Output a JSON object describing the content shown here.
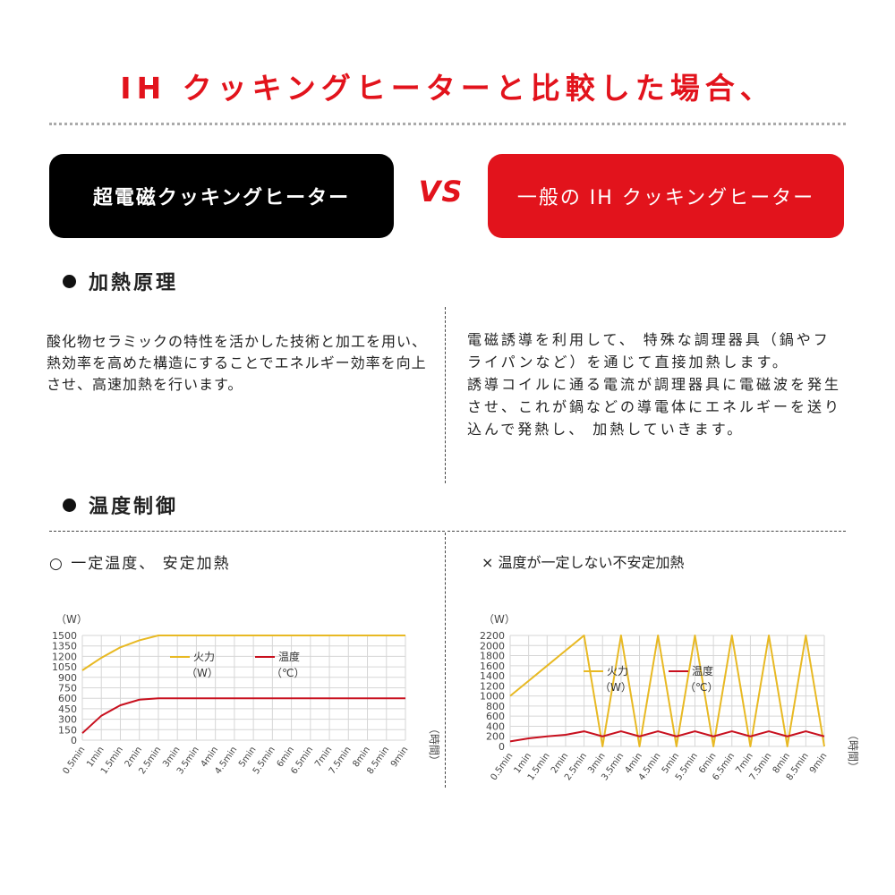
{
  "title": "IH クッキングヒーターと比較した場合、",
  "compare": {
    "left_label": "超電磁クッキングヒーター",
    "vs": "VS",
    "right_label": "一般の IH クッキングヒーター"
  },
  "sections": {
    "heating": {
      "heading": "加熱原理",
      "left_text": "酸化物セラミックの特性を活かした技術と加工を用い、熱効率を高めた構造にすることでエネルギー効率を向上させ、高速加熱を行います。",
      "right_text_1": "電磁誘導を利用して、 特殊な調理器具（鍋やフライパンなど）を通じて直接加熱します。",
      "right_text_2": "誘導コイルに通る電流が調理器具に電磁波を発生させ、これが鍋などの導電体にエネルギーを送り込んで発熱し、 加熱していきます。"
    },
    "temperature": {
      "heading": "温度制御",
      "left_sub": "○ 一定温度、 安定加熱",
      "right_sub": "× 温度が一定しない不安定加熱"
    }
  },
  "colors": {
    "accent_red": "#e2131c",
    "power_line": "#e8b923",
    "temp_line": "#c8101e",
    "grid": "#d6d6d6"
  },
  "chart_data": [
    {
      "type": "line",
      "ylabel": "（W）",
      "xlabel": "（時間）",
      "x": [
        "0.5min",
        "1min",
        "1.5min",
        "2min",
        "2.5min",
        "3min",
        "3.5min",
        "4min",
        "4.5min",
        "5min",
        "5.5min",
        "6min",
        "6.5min",
        "7min",
        "7.5min",
        "8min",
        "8.5min",
        "9min"
      ],
      "yticks": [
        0,
        150,
        300,
        450,
        600,
        750,
        900,
        1050,
        1200,
        1350,
        1500
      ],
      "ylim": [
        0,
        1500
      ],
      "series": [
        {
          "name": "火力（W）",
          "color": "#e8b923",
          "values": [
            1000,
            1180,
            1330,
            1430,
            1500,
            1500,
            1500,
            1500,
            1500,
            1500,
            1500,
            1500,
            1500,
            1500,
            1500,
            1500,
            1500,
            1500
          ]
        },
        {
          "name": "温度（℃）",
          "color": "#c8101e",
          "values": [
            100,
            350,
            500,
            580,
            600,
            600,
            600,
            600,
            600,
            600,
            600,
            600,
            600,
            600,
            600,
            600,
            600,
            600
          ]
        }
      ],
      "legend_position": "top-center"
    },
    {
      "type": "line",
      "ylabel": "（W）",
      "xlabel": "（時間）",
      "x": [
        "0.5min",
        "1min",
        "1.5min",
        "2min",
        "2.5min",
        "3min",
        "3.5min",
        "4min",
        "4.5min",
        "5min",
        "5.5min",
        "6min",
        "6.5min",
        "7min",
        "7.5min",
        "8min",
        "8.5min",
        "9min"
      ],
      "yticks": [
        0,
        200,
        400,
        600,
        800,
        1000,
        1200,
        1400,
        1600,
        1800,
        2000,
        2200
      ],
      "ylim": [
        0,
        2200
      ],
      "series": [
        {
          "name": "火力（W）",
          "color": "#e8b923",
          "values": [
            1000,
            1300,
            1600,
            1900,
            2200,
            0,
            2200,
            0,
            2200,
            0,
            2200,
            0,
            2200,
            0,
            2200,
            0,
            2200,
            0
          ]
        },
        {
          "name": "温度（℃）",
          "color": "#c8101e",
          "values": [
            100,
            160,
            200,
            230,
            300,
            200,
            300,
            200,
            300,
            200,
            300,
            200,
            300,
            200,
            300,
            200,
            300,
            200
          ]
        }
      ],
      "legend_position": "top-center"
    }
  ]
}
